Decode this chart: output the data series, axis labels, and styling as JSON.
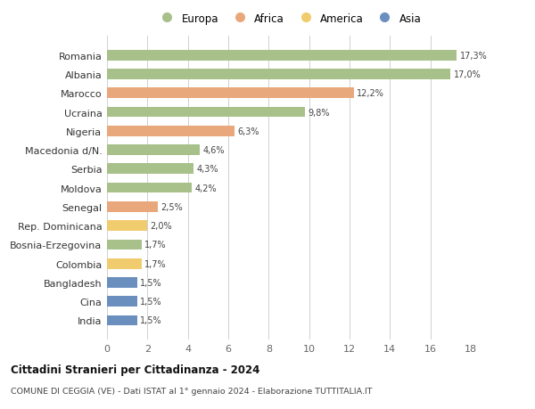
{
  "countries": [
    "Romania",
    "Albania",
    "Marocco",
    "Ucraina",
    "Nigeria",
    "Macedonia d/N.",
    "Serbia",
    "Moldova",
    "Senegal",
    "Rep. Dominicana",
    "Bosnia-Erzegovina",
    "Colombia",
    "Bangladesh",
    "Cina",
    "India"
  ],
  "values": [
    17.3,
    17.0,
    12.2,
    9.8,
    6.3,
    4.6,
    4.3,
    4.2,
    2.5,
    2.0,
    1.7,
    1.7,
    1.5,
    1.5,
    1.5
  ],
  "labels": [
    "17,3%",
    "17,0%",
    "12,2%",
    "9,8%",
    "6,3%",
    "4,6%",
    "4,3%",
    "4,2%",
    "2,5%",
    "2,0%",
    "1,7%",
    "1,7%",
    "1,5%",
    "1,5%",
    "1,5%"
  ],
  "continents": [
    "Europa",
    "Europa",
    "Africa",
    "Europa",
    "Africa",
    "Europa",
    "Europa",
    "Europa",
    "Africa",
    "America",
    "Europa",
    "America",
    "Asia",
    "Asia",
    "Asia"
  ],
  "colors": {
    "Europa": "#a8c08a",
    "Africa": "#e8a87c",
    "America": "#f0cc6e",
    "Asia": "#6a8fbf"
  },
  "legend_order": [
    "Europa",
    "Africa",
    "America",
    "Asia"
  ],
  "title": "Cittadini Stranieri per Cittadinanza - 2024",
  "subtitle": "COMUNE DI CEGGIA (VE) - Dati ISTAT al 1° gennaio 2024 - Elaborazione TUTTITALIA.IT",
  "xlim": [
    0,
    18
  ],
  "xticks": [
    0,
    2,
    4,
    6,
    8,
    10,
    12,
    14,
    16,
    18
  ],
  "bg_color": "#ffffff",
  "grid_color": "#d0d0d0",
  "bar_height": 0.55
}
